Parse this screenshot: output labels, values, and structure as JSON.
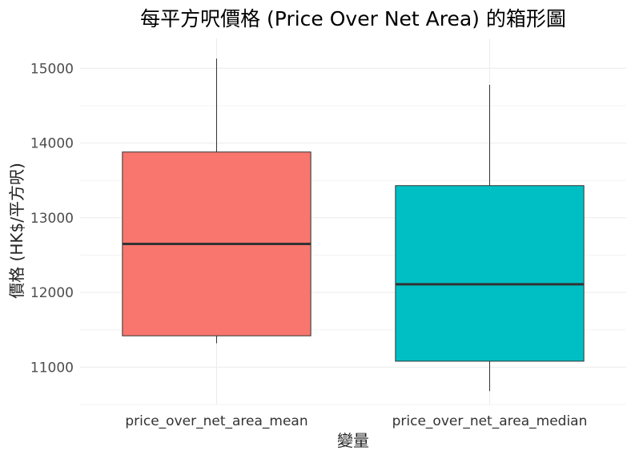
{
  "chart_data": {
    "type": "boxplot",
    "title": "每平方呎價格 (Price Over Net Area) 的箱形圖",
    "xlabel": "變量",
    "ylabel": "價格 (HK$/平方呎)",
    "categories": [
      "price_over_net_area_mean",
      "price_over_net_area_median"
    ],
    "y_ticks": [
      11000,
      12000,
      13000,
      14000,
      15000
    ],
    "ylim": [
      10500,
      15400
    ],
    "grid": true,
    "legend": "none",
    "boxes": [
      {
        "category": "price_over_net_area_mean",
        "min": 11320,
        "q1": 11420,
        "median": 12650,
        "q3": 13880,
        "max": 15130,
        "color": "#F8766D"
      },
      {
        "category": "price_over_net_area_median",
        "min": 10680,
        "q1": 11080,
        "median": 12110,
        "q3": 13430,
        "max": 14780,
        "color": "#00BFC4"
      }
    ]
  }
}
